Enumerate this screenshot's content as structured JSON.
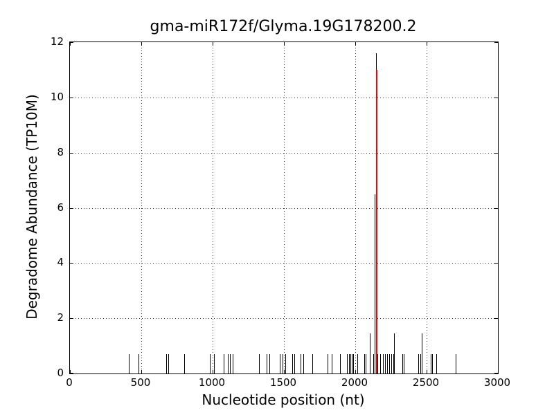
{
  "chart_data": {
    "type": "bar",
    "title": "gma-miR172f/Glyma.19G178200.2",
    "xlabel": "Nucleotide position (nt)",
    "ylabel": "Degradome Abundance (TP10M)",
    "xlim": [
      0,
      3000
    ],
    "ylim": [
      0,
      12
    ],
    "xticks": [
      0,
      500,
      1000,
      1500,
      2000,
      2500,
      3000
    ],
    "yticks": [
      0,
      2,
      4,
      6,
      8,
      10,
      12
    ],
    "grid": "dotted",
    "bar_color": "#000000",
    "highlight_color": "#ff0000",
    "background_color": "#ffffff",
    "bars": [
      [
        413,
        0.7
      ],
      [
        483,
        0.7
      ],
      [
        674,
        0.7
      ],
      [
        688,
        0.7
      ],
      [
        800,
        0.7
      ],
      [
        982,
        0.7
      ],
      [
        1011,
        0.7
      ],
      [
        1079,
        0.7
      ],
      [
        1108,
        0.7
      ],
      [
        1121,
        0.7
      ],
      [
        1141,
        0.7
      ],
      [
        1324,
        0.7
      ],
      [
        1379,
        0.7
      ],
      [
        1400,
        0.7
      ],
      [
        1472,
        0.7
      ],
      [
        1490,
        0.7
      ],
      [
        1510,
        0.7
      ],
      [
        1557,
        0.7
      ],
      [
        1572,
        0.7
      ],
      [
        1618,
        0.7
      ],
      [
        1634,
        0.7
      ],
      [
        1699,
        0.7
      ],
      [
        1807,
        0.7
      ],
      [
        1836,
        0.7
      ],
      [
        1893,
        0.7
      ],
      [
        1942,
        0.7
      ],
      [
        1955,
        0.7
      ],
      [
        1966,
        0.7
      ],
      [
        1976,
        0.7
      ],
      [
        1986,
        0.7
      ],
      [
        2014,
        0.7
      ],
      [
        2063,
        0.7
      ],
      [
        2075,
        0.7
      ],
      [
        2100,
        1.45
      ],
      [
        2126,
        0.7
      ],
      [
        2134,
        6.5
      ],
      [
        2147,
        11.6
      ],
      [
        2157,
        0.7
      ],
      [
        2173,
        0.7
      ],
      [
        2192,
        0.7
      ],
      [
        2208,
        0.7
      ],
      [
        2224,
        0.7
      ],
      [
        2240,
        0.7
      ],
      [
        2253,
        0.7
      ],
      [
        2265,
        0.7
      ],
      [
        2273,
        1.45
      ],
      [
        2328,
        0.7
      ],
      [
        2340,
        0.7
      ],
      [
        2443,
        0.7
      ],
      [
        2456,
        0.7
      ],
      [
        2468,
        1.45
      ],
      [
        2528,
        0.7
      ],
      [
        2541,
        0.7
      ],
      [
        2566,
        0.7
      ],
      [
        2702,
        0.7
      ]
    ],
    "highlight": {
      "x": 2149,
      "value": 11.0
    }
  }
}
